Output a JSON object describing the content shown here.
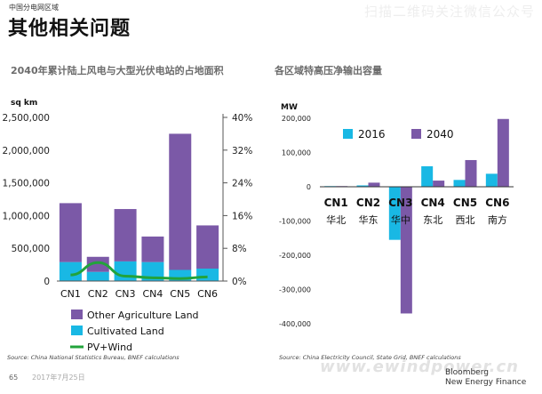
{
  "header": {
    "tag": "中国分电网区域",
    "title": "其他相关问题",
    "watermark": "扫描二维码关注微信公众号"
  },
  "colors": {
    "purple": "#7b59a7",
    "cyan": "#19b8e4",
    "green": "#22a33b"
  },
  "chart_data": [
    {
      "type": "bar",
      "title": "2040年累计陆上风电与大型光伏电站的占地面积",
      "ylabel": "sq km",
      "categories": [
        "CN1",
        "CN2",
        "CN3",
        "CN4",
        "CN5",
        "CN6"
      ],
      "ylim": [
        0,
        2500000
      ],
      "yticks": [
        "0",
        "500,000",
        "1,000,000",
        "1,500,000",
        "2,000,000",
        "2,500,000"
      ],
      "y2lim": [
        0,
        40
      ],
      "y2ticks": [
        "0%",
        "8%",
        "16%",
        "24%",
        "32%",
        "40%"
      ],
      "stacked": true,
      "series": [
        {
          "name": "Cultivated Land",
          "values": [
            290000,
            140000,
            300000,
            290000,
            170000,
            190000
          ]
        },
        {
          "name": "Other Agriculture Land",
          "values": [
            900000,
            230000,
            800000,
            390000,
            2080000,
            660000
          ]
        },
        {
          "name": "PV+Wind",
          "type": "line",
          "axis": "secondary",
          "values": [
            1.5,
            4.5,
            1.2,
            0.8,
            0.6,
            1.0
          ]
        }
      ],
      "legend": [
        "Other Agriculture Land",
        "Cultivated Land",
        "PV+Wind"
      ],
      "legend_placement": "bottom",
      "source": "Source: China National Statistics Bureau, BNEF calculations"
    },
    {
      "type": "bar",
      "title": "各区域特高压净输出容量",
      "ylabel": "MW",
      "categories": [
        "CN1",
        "CN2",
        "CN3",
        "CN4",
        "CN5",
        "CN6"
      ],
      "category_labels_cn": [
        "华北",
        "华东",
        "华中",
        "东北",
        "西北",
        "南方"
      ],
      "ylim": [
        -400000,
        200000
      ],
      "yticks": [
        "200,000",
        "100,000",
        "0",
        "-100,000",
        "-200,000",
        "-300,000",
        "-400,000"
      ],
      "series": [
        {
          "name": "2016",
          "values": [
            2000,
            4000,
            -155000,
            60000,
            20000,
            38000
          ]
        },
        {
          "name": "2040",
          "values": [
            2000,
            12000,
            -370000,
            18000,
            78000,
            198000
          ]
        }
      ],
      "legend_placement": "top",
      "source": "Source: China Electricity Council, State Grid, BNEF calculations"
    }
  ],
  "footer": {
    "page": "65",
    "date": "2017年7月25日",
    "site": "www.ewindpower.cn",
    "brand_line1": "Bloomberg",
    "brand_line2": "New Energy Finance"
  }
}
